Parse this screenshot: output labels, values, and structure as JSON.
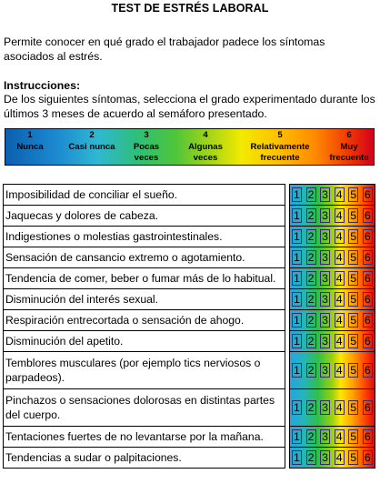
{
  "title": "TEST DE ESTRÉS LABORAL",
  "intro": "Permite conocer en qué grado el trabajador padece los síntomas asociados al estrés.",
  "instructions": {
    "heading": "Instrucciones:",
    "body": "De los siguientes síntomas, selecciona el grado experimentado durante los últimos 3 meses de acuerdo al semáforo presentado."
  },
  "scale": [
    {
      "number": "1",
      "line1": "Nunca",
      "line2": ""
    },
    {
      "number": "2",
      "line1": "Casi nunca",
      "line2": ""
    },
    {
      "number": "3",
      "line1": "Pocas",
      "line2": "veces"
    },
    {
      "number": "4",
      "line1": "Algunas",
      "line2": "veces"
    },
    {
      "number": "5",
      "line1": "Relativamente",
      "line2": "frecuente"
    },
    {
      "number": "6",
      "line1": "Muy",
      "line2": "frecuente"
    }
  ],
  "options": [
    "1",
    "2",
    "3",
    "4",
    "5",
    "6"
  ],
  "symptoms": [
    "Imposibilidad de conciliar el sueño.",
    "Jaquecas y dolores de cabeza.",
    "Indigestiones o molestias gastrointestinales.",
    "Sensación de cansancio extremo o agotamiento.",
    "Tendencia de comer, beber o fumar más de lo habitual.",
    "Disminución del interés sexual.",
    "Respiración entrecortada o sensación de ahogo.",
    "Disminución del apetito.",
    "Temblores musculares (por ejemplo tics nerviosos o parpadeos).",
    "Pinchazos o sensaciones dolorosas en distintas partes del cuerpo.",
    "Tentaciones fuertes de no levantarse por la mañana.",
    "Tendencias a sudar o palpitaciones."
  ]
}
